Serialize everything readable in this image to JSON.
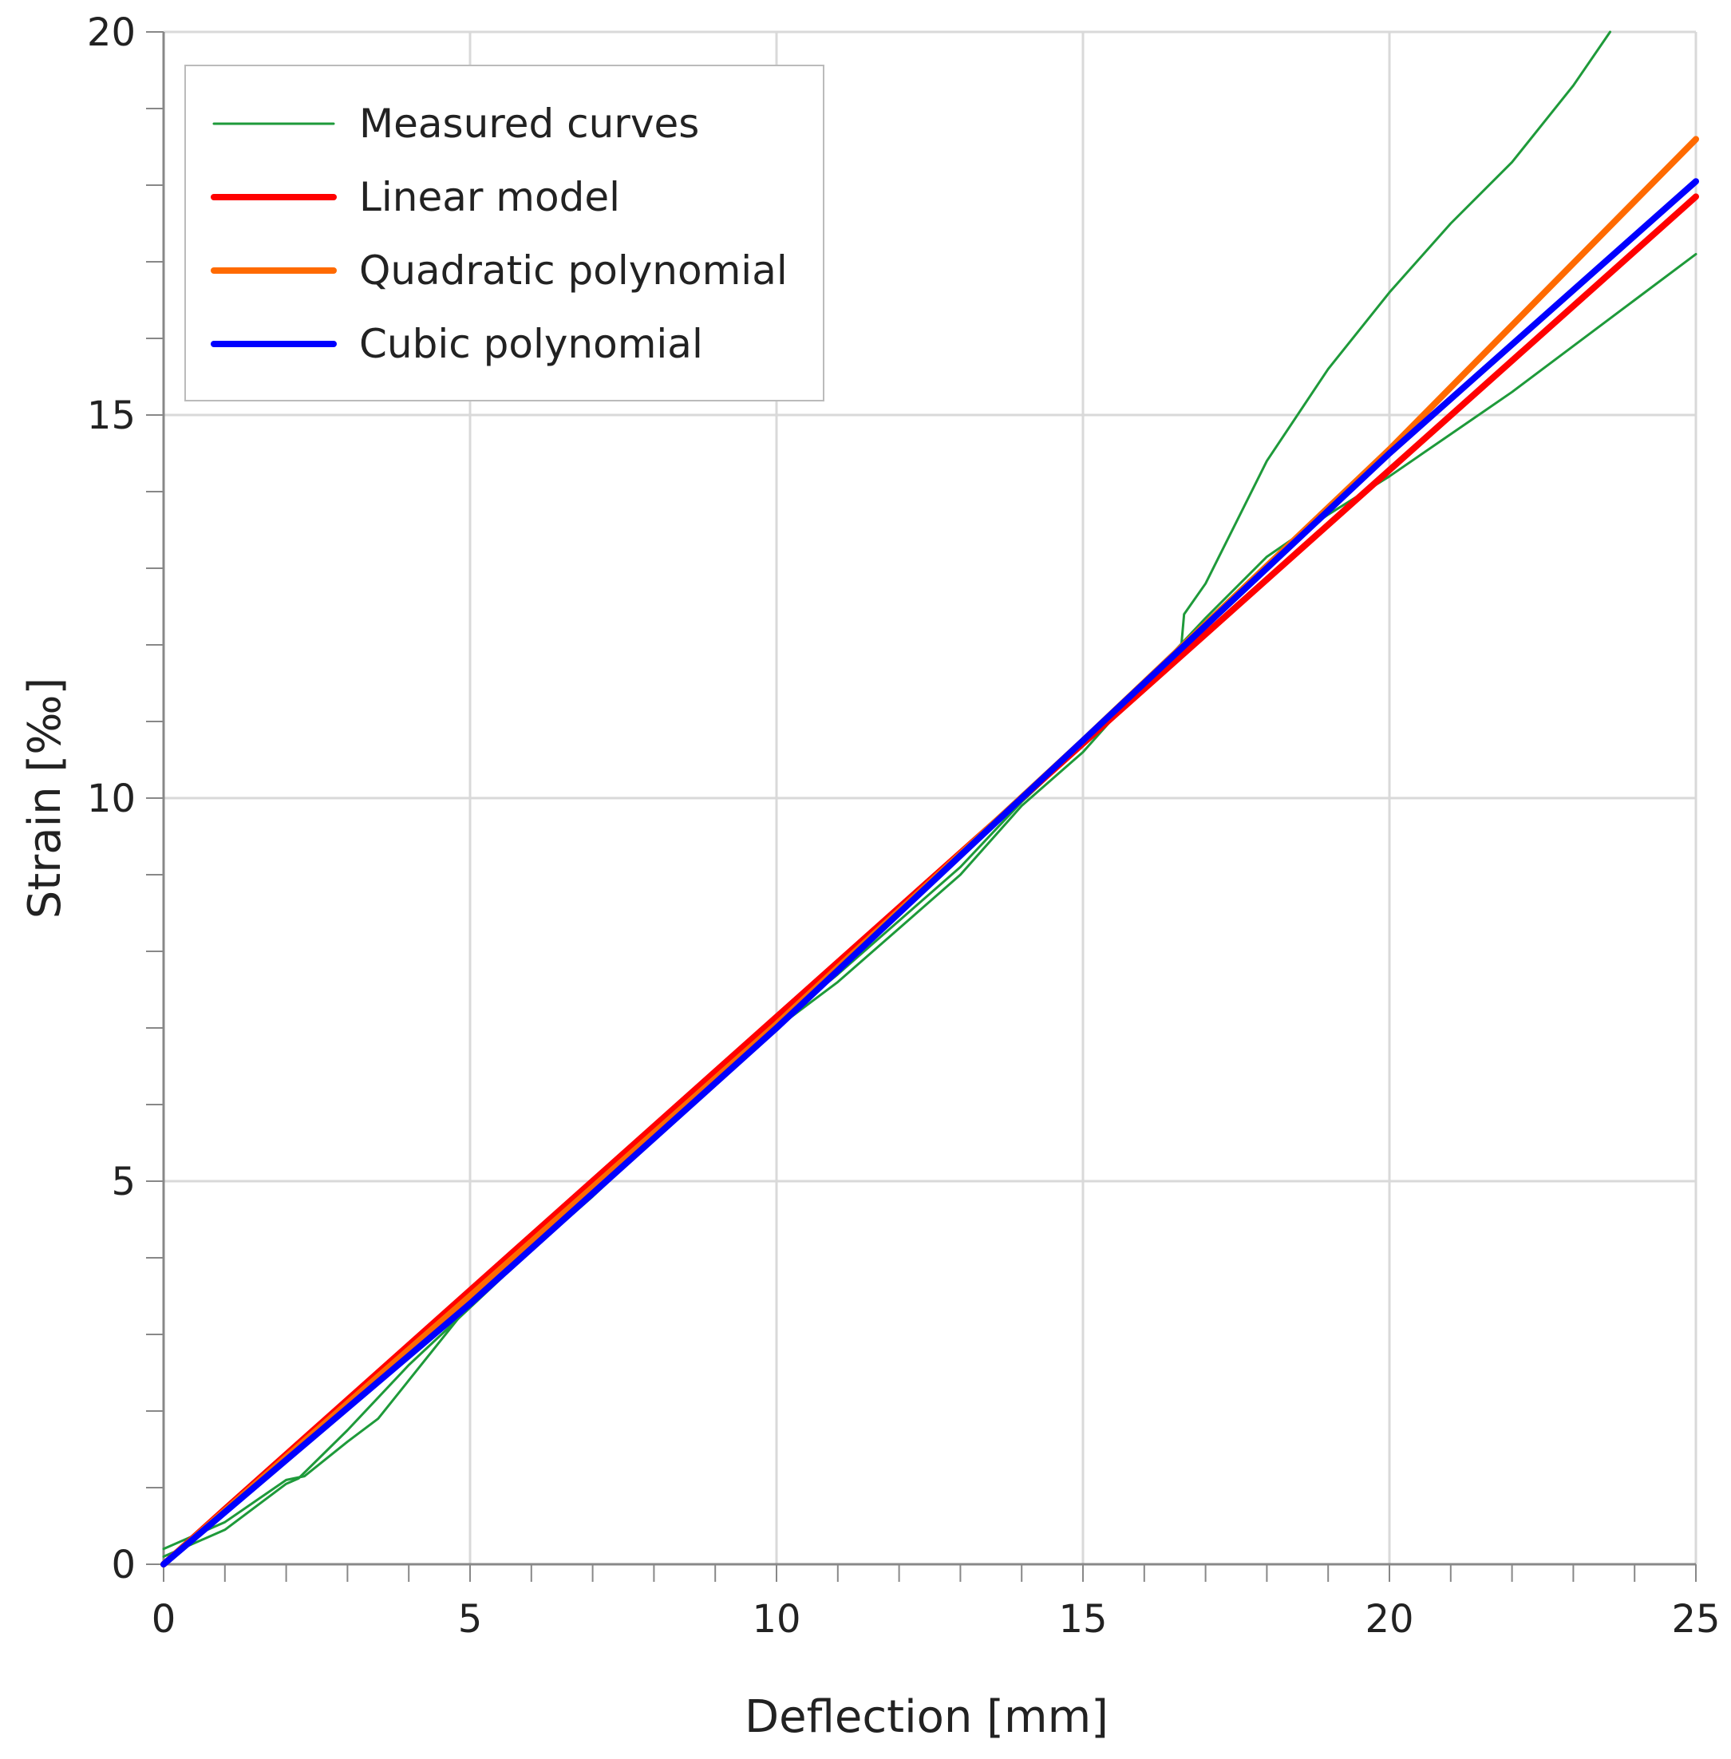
{
  "chart_data": {
    "type": "line",
    "title": "",
    "xlabel": "Deflection [mm]",
    "ylabel": "Strain [‰]",
    "xlim": [
      0,
      25
    ],
    "ylim": [
      0,
      20
    ],
    "x_major_ticks": [
      0,
      5,
      10,
      15,
      20,
      25
    ],
    "y_major_ticks": [
      0,
      5,
      10,
      15,
      20
    ],
    "x_tick_labels": [
      "0",
      "5",
      "10",
      "15",
      "20",
      "25"
    ],
    "y_tick_labels": [
      "0",
      "5",
      "10",
      "15",
      "20"
    ],
    "x_minor_step": 1,
    "y_minor_step": 1,
    "grid": true,
    "legend_position": "top-left",
    "series": [
      {
        "name": "Measured curves",
        "legend_label": "Measured curves",
        "color": "#1e9a3a",
        "points": [
          [
            0,
            0.2
          ],
          [
            1,
            0.55
          ],
          [
            2,
            1.1
          ],
          [
            2.3,
            1.15
          ],
          [
            3,
            1.6
          ],
          [
            3.5,
            1.9
          ],
          [
            4,
            2.4
          ],
          [
            5,
            3.4
          ],
          [
            7,
            4.8
          ],
          [
            9,
            6.3
          ],
          [
            10,
            7.0
          ],
          [
            11,
            7.6
          ],
          [
            12,
            8.3
          ],
          [
            13,
            9.0
          ],
          [
            14,
            9.9
          ],
          [
            15,
            10.6
          ],
          [
            16,
            11.5
          ],
          [
            16.6,
            11.95
          ],
          [
            16.65,
            12.4
          ],
          [
            17,
            12.8
          ],
          [
            17.5,
            13.6
          ],
          [
            18,
            14.4
          ],
          [
            19,
            15.6
          ],
          [
            20,
            16.6
          ],
          [
            21,
            17.5
          ],
          [
            22,
            18.3
          ],
          [
            23,
            19.3
          ],
          [
            23.6,
            20.0
          ]
        ]
      },
      {
        "name": "Measured curves",
        "legend_label": "",
        "color": "#1e9a3a",
        "points": [
          [
            0,
            0.1
          ],
          [
            1,
            0.45
          ],
          [
            2,
            1.05
          ],
          [
            2.2,
            1.12
          ],
          [
            3,
            1.75
          ],
          [
            4,
            2.6
          ],
          [
            5,
            3.35
          ],
          [
            7,
            4.85
          ],
          [
            9,
            6.4
          ],
          [
            10,
            7.05
          ],
          [
            11,
            7.7
          ],
          [
            12,
            8.4
          ],
          [
            13,
            9.1
          ],
          [
            14,
            9.95
          ],
          [
            15,
            10.7
          ],
          [
            16,
            11.5
          ],
          [
            17,
            12.35
          ],
          [
            18,
            13.15
          ],
          [
            19,
            13.7
          ],
          [
            20,
            14.2
          ],
          [
            21,
            14.75
          ],
          [
            22,
            15.3
          ],
          [
            23,
            15.9
          ],
          [
            24,
            16.5
          ],
          [
            25,
            17.1
          ]
        ]
      },
      {
        "name": "Linear model",
        "legend_label": "Linear model",
        "color": "#ff0000",
        "points": [
          [
            0,
            0.0
          ],
          [
            1,
            0.72
          ],
          [
            25,
            17.85
          ]
        ]
      },
      {
        "name": "Quadratic polynomial",
        "legend_label": "Quadratic polynomial",
        "color": "#ff6a00",
        "points": [
          [
            0,
            0.0
          ],
          [
            5,
            3.5
          ],
          [
            10,
            7.05
          ],
          [
            15,
            10.75
          ],
          [
            20,
            14.55
          ],
          [
            25,
            18.6
          ]
        ]
      },
      {
        "name": "Cubic polynomial",
        "legend_label": "Cubic polynomial",
        "color": "#0000ff",
        "points": [
          [
            0,
            0.0
          ],
          [
            5,
            3.4
          ],
          [
            10,
            7.0
          ],
          [
            15,
            10.75
          ],
          [
            20,
            14.5
          ],
          [
            25,
            18.05
          ]
        ]
      }
    ]
  }
}
